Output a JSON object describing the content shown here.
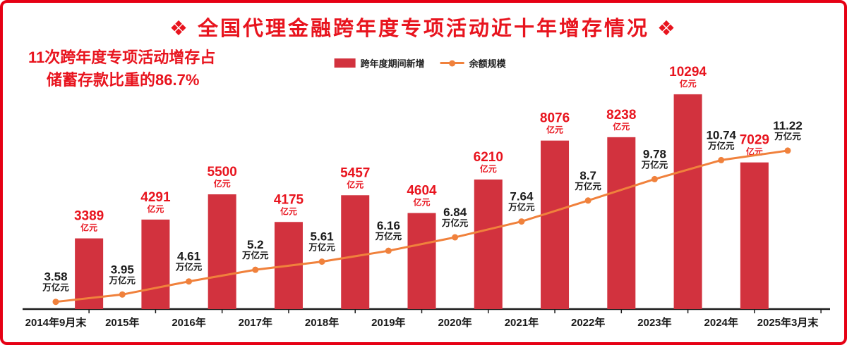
{
  "title": {
    "text": "❖ 全国代理金融跨年度专项活动近十年增存情况 ❖"
  },
  "annotation": {
    "line1": "11次跨年度专项活动增存占",
    "line2": "储蓄存款比重的86.7%"
  },
  "legend": {
    "bar_label": "跨年度期间新增",
    "line_label": "余额规模"
  },
  "colors": {
    "frame_red": "#e60014",
    "text_red": "#e8141e",
    "bar_red": "#d2323e",
    "orange": "#f0813c",
    "axis_black": "#1a1a1a",
    "background": "#ffffff"
  },
  "chart_data": {
    "type": "bar",
    "title": "全国代理金融跨年度专项活动近十年增存情况",
    "categories": [
      "2014年9月末",
      "2015年",
      "2016年",
      "2017年",
      "2018年",
      "2019年",
      "2020年",
      "2021年",
      "2022年",
      "2023年",
      "2024年",
      "2025年3月末"
    ],
    "series": [
      {
        "name": "跨年度期间新增",
        "type": "bar",
        "unit": "亿元",
        "align": "between-categories",
        "values": [
          3389,
          4291,
          5500,
          4175,
          5457,
          4604,
          6210,
          8076,
          8238,
          10294,
          7029
        ]
      },
      {
        "name": "余额规模",
        "type": "line",
        "unit": "万亿元",
        "align": "on-categories",
        "values": [
          3.58,
          3.95,
          4.61,
          5.2,
          5.61,
          6.16,
          6.84,
          7.64,
          8.7,
          9.78,
          10.74,
          11.22
        ]
      }
    ],
    "bar_ylim": [
      0,
      11000
    ],
    "line_ylim": [
      3,
      12
    ],
    "legend_position": "top-center",
    "grid": false
  }
}
